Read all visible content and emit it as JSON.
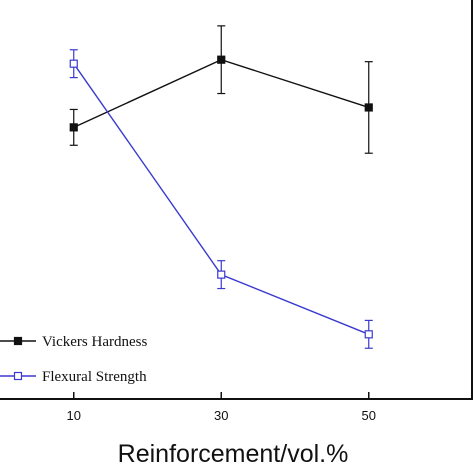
{
  "chart_data": {
    "type": "line",
    "xlabel": "Reinforcement/vol.%",
    "ylabel": "",
    "x": [
      10,
      30,
      50
    ],
    "xlim": [
      0,
      64
    ],
    "ylim": [
      0,
      100
    ],
    "x_ticks": [
      10,
      30,
      50
    ],
    "legend_position": "bottom-left",
    "series": [
      {
        "name": "Vickers Hardness",
        "color": "#111111",
        "marker": "filled-square",
        "values": [
          68,
          85,
          73
        ],
        "error": [
          4.5,
          8.5,
          11.5
        ]
      },
      {
        "name": "Flexural Strength",
        "color": "#3a3ad0",
        "marker": "open-square",
        "values": [
          84,
          31,
          16
        ],
        "error": [
          3.5,
          3.5,
          3.5
        ]
      }
    ]
  }
}
